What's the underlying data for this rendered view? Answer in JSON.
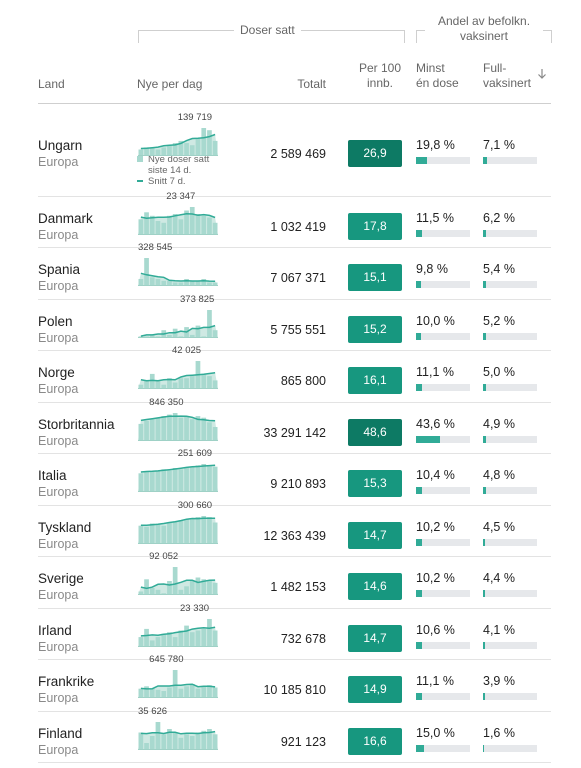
{
  "header": {
    "land": "Land",
    "nye_per_dag": "Nye per dag",
    "doser_satt": "Doser satt",
    "totalt": "Totalt",
    "per100": [
      "Per 100",
      "innb."
    ],
    "andel": [
      "Andel av befolkn.",
      "vaksinert"
    ],
    "minst_en_dose": [
      "Minst",
      "én dose"
    ],
    "fullvaksinert": [
      "Full-",
      "vaksinert"
    ]
  },
  "legend": {
    "line1": "Nye doser satt",
    "line2": "siste 14 d.",
    "line3": "Snitt 7 d."
  },
  "colors": {
    "accent": "#31ab97",
    "accent_dark": "#0d7a64",
    "bar_light": "#a8d9cf",
    "line": "#31ab97"
  },
  "icons": {
    "sort": "arrow-down-icon"
  },
  "rows": [
    {
      "country": "Ungarn",
      "region": "Europa",
      "peak": "139 719",
      "total": "2 589 469",
      "per100": "26,9",
      "minst": "19,8 %",
      "minst_v": 19.8,
      "full": "7,1 %",
      "full_v": 7.1,
      "bars": [
        3,
        4,
        4,
        3,
        4,
        5,
        6,
        7,
        6,
        5,
        8,
        13,
        12,
        7
      ]
    },
    {
      "country": "Danmark",
      "region": "Europa",
      "peak": "23 347",
      "total": "1 032 419",
      "per100": "17,8",
      "minst": "11,5 %",
      "minst_v": 11.5,
      "full": "6,2 %",
      "full_v": 6.2,
      "bars": [
        9,
        13,
        11,
        8,
        7,
        11,
        12,
        9,
        14,
        16,
        12,
        11,
        10,
        7
      ]
    },
    {
      "country": "Spania",
      "region": "Europa",
      "peak": "328 545",
      "total": "7 067 371",
      "per100": "15,1",
      "minst": "9,8 %",
      "minst_v": 9.8,
      "full": "5,4 %",
      "full_v": 5.4,
      "bars": [
        4,
        16,
        5,
        4,
        3,
        3,
        2,
        2,
        4,
        3,
        3,
        4,
        2,
        2
      ]
    },
    {
      "country": "Polen",
      "region": "Europa",
      "peak": "373 825",
      "total": "5 755 551",
      "per100": "15,2",
      "minst": "10,0 %",
      "minst_v": 10.0,
      "full": "5,2 %",
      "full_v": 5.2,
      "bars": [
        1,
        1,
        2,
        1,
        5,
        2,
        6,
        1,
        7,
        2,
        8,
        1,
        18,
        5
      ]
    },
    {
      "country": "Norge",
      "region": "Europa",
      "peak": "42 025",
      "total": "865 800",
      "per100": "16,1",
      "minst": "11,1 %",
      "minst_v": 11.1,
      "full": "5,0 %",
      "full_v": 5.0,
      "bars": [
        2,
        4,
        7,
        4,
        2,
        5,
        3,
        5,
        5,
        6,
        13,
        7,
        6,
        4
      ]
    },
    {
      "country": "Storbritannia",
      "region": "Europa",
      "peak": "846 350",
      "total": "33 291 142",
      "per100": "48,6",
      "minst": "43,6 %",
      "minst_v": 43.6,
      "full": "4,9 %",
      "full_v": 4.9,
      "bars": [
        11,
        13,
        14,
        15,
        16,
        17,
        18,
        15,
        16,
        14,
        16,
        15,
        12,
        9
      ]
    },
    {
      "country": "Italia",
      "region": "Europa",
      "peak": "251 609",
      "total": "9 210 893",
      "per100": "15,3",
      "minst": "10,4 %",
      "minst_v": 10.4,
      "full": "4,8 %",
      "full_v": 4.8,
      "bars": [
        14,
        15,
        15,
        16,
        17,
        16,
        18,
        17,
        18,
        19,
        20,
        21,
        20,
        19
      ]
    },
    {
      "country": "Tyskland",
      "region": "Europa",
      "peak": "300 660",
      "total": "12 363 439",
      "per100": "14,7",
      "minst": "10,2 %",
      "minst_v": 10.2,
      "full": "4,5 %",
      "full_v": 4.5,
      "bars": [
        17,
        16,
        19,
        18,
        17,
        20,
        21,
        22,
        23,
        24,
        25,
        26,
        25,
        20
      ]
    },
    {
      "country": "Sverige",
      "region": "Europa",
      "peak": "92 052",
      "total": "1 482 153",
      "per100": "14,6",
      "minst": "10,2 %",
      "minst_v": 10.2,
      "full": "4,4 %",
      "full_v": 4.4,
      "bars": [
        2,
        9,
        4,
        3,
        1,
        8,
        16,
        3,
        5,
        8,
        10,
        9,
        8,
        7
      ]
    },
    {
      "country": "Irland",
      "region": "Europa",
      "peak": "23 330",
      "total": "732 678",
      "per100": "14,7",
      "minst": "10,6 %",
      "minst_v": 10.6,
      "full": "4,1 %",
      "full_v": 4.1,
      "bars": [
        6,
        11,
        4,
        6,
        8,
        9,
        6,
        10,
        13,
        9,
        10,
        11,
        17,
        10
      ]
    },
    {
      "country": "Frankrike",
      "region": "Europa",
      "peak": "645 780",
      "total": "10 185 810",
      "per100": "14,9",
      "minst": "11,1 %",
      "minst_v": 11.1,
      "full": "3,9 %",
      "full_v": 3.9,
      "bars": [
        8,
        10,
        8,
        7,
        6,
        9,
        24,
        8,
        10,
        12,
        8,
        10,
        11,
        9
      ]
    },
    {
      "country": "Finland",
      "region": "Europa",
      "peak": "35 626",
      "total": "921 123",
      "per100": "16,6",
      "minst": "15,0 %",
      "minst_v": 15.0,
      "full": "1,6 %",
      "full_v": 1.6,
      "bars": [
        10,
        4,
        8,
        16,
        9,
        12,
        10,
        7,
        9,
        8,
        10,
        11,
        12,
        9
      ]
    }
  ]
}
